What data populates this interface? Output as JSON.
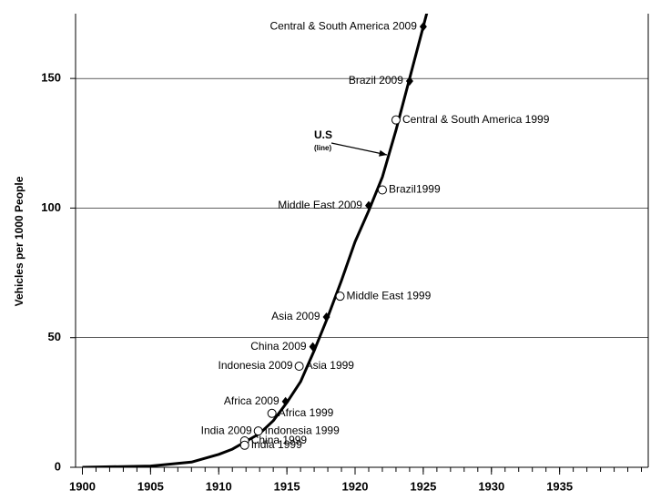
{
  "chart_data": {
    "type": "line",
    "y_label": "Vehicles per 1000 People",
    "xlim": [
      1899.5,
      1941.5
    ],
    "ylim": [
      0,
      175
    ],
    "xticks": [
      1900,
      1905,
      1910,
      1915,
      1920,
      1925,
      1930,
      1935
    ],
    "yticks": [
      0,
      50,
      100,
      150
    ],
    "grid": true,
    "line": {
      "color": "#000000",
      "x": [
        1900,
        1905,
        1908,
        1910,
        1911,
        1912,
        1913,
        1914,
        1915,
        1916,
        1917,
        1918,
        1919,
        1920,
        1921,
        1922,
        1923,
        1924,
        1925,
        1925.4
      ],
      "values": [
        0,
        0.5,
        2,
        5,
        7,
        10,
        13,
        18,
        25,
        33,
        45,
        58,
        72,
        87,
        99,
        112,
        130,
        150,
        170,
        178
      ]
    },
    "points": [
      {
        "label": "Central & South America 2009",
        "x": 1925,
        "y": 170,
        "marker": "diamond",
        "side": "left"
      },
      {
        "label": "Brazil 2009",
        "x": 1924,
        "y": 149,
        "marker": "diamond",
        "side": "left"
      },
      {
        "label": "Central & South America 1999",
        "x": 1923,
        "y": 134,
        "marker": "circle",
        "side": "right"
      },
      {
        "label": "Brazil1999",
        "x": 1922,
        "y": 107,
        "marker": "circle",
        "side": "right"
      },
      {
        "label": "Middle East 2009",
        "x": 1921,
        "y": 101,
        "marker": "diamond",
        "side": "left"
      },
      {
        "label": "Middle East 1999",
        "x": 1918.9,
        "y": 66,
        "marker": "circle",
        "side": "right"
      },
      {
        "label": "Asia 2009",
        "x": 1917.9,
        "y": 58,
        "marker": "diamond",
        "side": "left"
      },
      {
        "label": "China 2009",
        "x": 1916.9,
        "y": 46.5,
        "marker": "diamond",
        "side": "left"
      },
      {
        "label": "Indonesia 2009",
        "x": 1915.9,
        "y": 39,
        "marker": "diamond",
        "side": "left"
      },
      {
        "label": "Asia 1999",
        "x": 1915.9,
        "y": 39,
        "marker": "circle",
        "side": "right"
      },
      {
        "label": "Africa 2009",
        "x": 1914.9,
        "y": 25.4,
        "marker": "diamond",
        "side": "left"
      },
      {
        "label": "Africa 1999",
        "x": 1913.9,
        "y": 20.8,
        "marker": "circle",
        "side": "right"
      },
      {
        "label": "India 2009",
        "x": 1912.9,
        "y": 14,
        "marker": "diamond",
        "side": "left"
      },
      {
        "label": "Indonesia 1999",
        "x": 1912.9,
        "y": 14,
        "marker": "circle",
        "side": "right"
      },
      {
        "label": "China 1999",
        "x": 1911.9,
        "y": 10.2,
        "marker": "circle",
        "side": "right"
      },
      {
        "label": "India 1999",
        "x": 1911.9,
        "y": 8.5,
        "marker": "circle",
        "side": "right"
      }
    ],
    "annotation": {
      "title": "U.S",
      "subtitle": "(line)"
    }
  }
}
